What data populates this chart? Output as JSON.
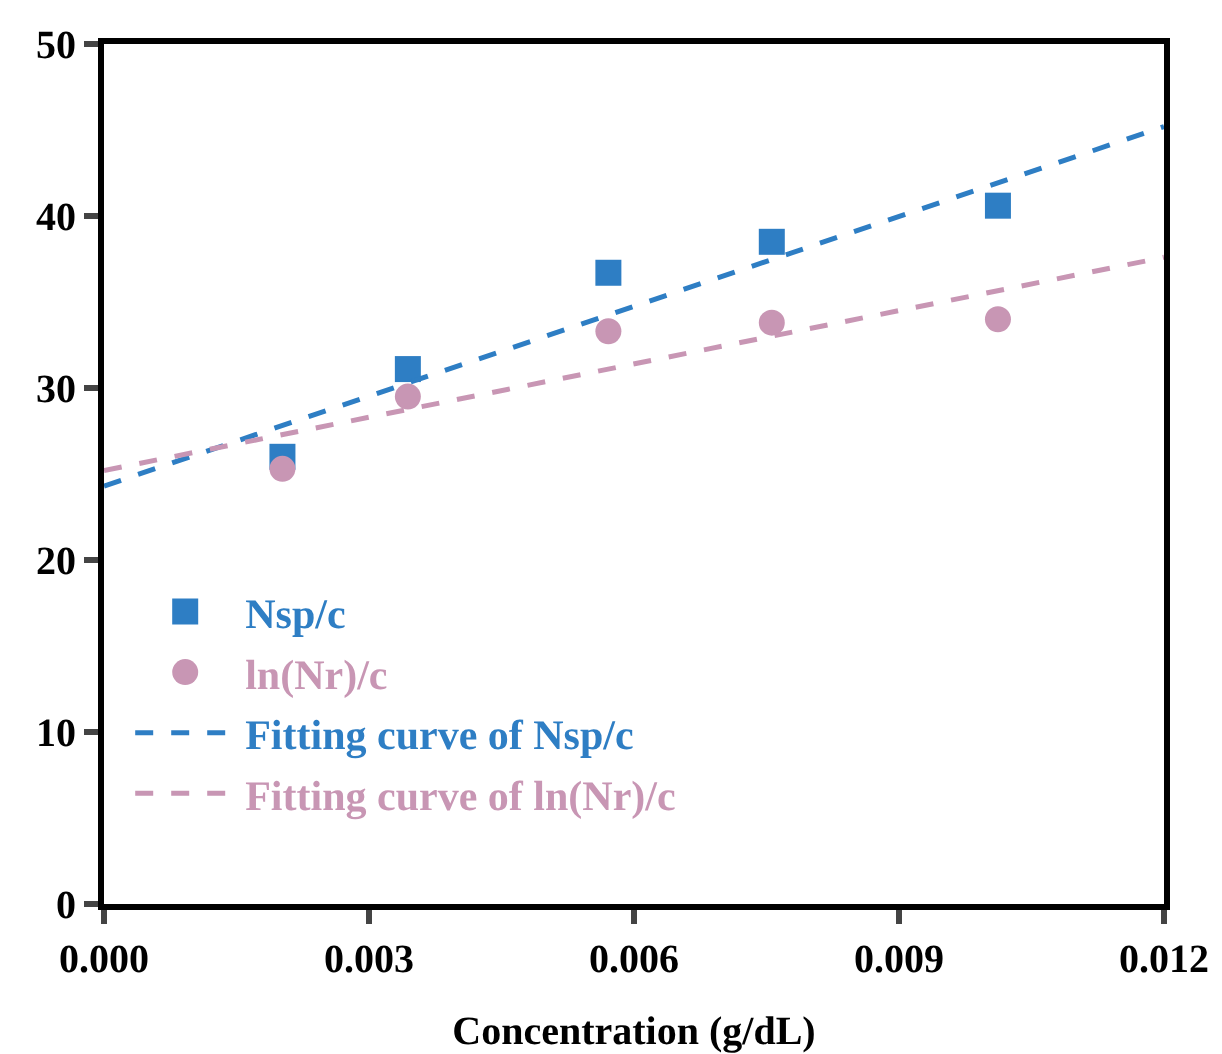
{
  "chart_data": {
    "type": "scatter",
    "xlabel": "Concentration (g/dL)",
    "xlim": [
      0,
      0.012
    ],
    "xticks": [
      {
        "value": 0,
        "label": "0.000"
      },
      {
        "value": 0.003,
        "label": "0.003"
      },
      {
        "value": 0.006,
        "label": "0.006"
      },
      {
        "value": 0.009,
        "label": "0.009"
      },
      {
        "value": 0.012,
        "label": "0.012"
      }
    ],
    "ylim": [
      0,
      50
    ],
    "yticks": [
      0,
      10,
      20,
      30,
      40,
      50
    ],
    "grid": false,
    "legend": "bottom left",
    "series": [
      {
        "name": "Nsp/c",
        "marker": "square",
        "color": "#2e7ec4",
        "x": [
          0.00202,
          0.00344,
          0.00571,
          0.00756,
          0.01012
        ],
        "values": [
          26.0,
          31.1,
          36.7,
          38.5,
          40.6
        ]
      },
      {
        "name": "ln(Nr)/c",
        "marker": "circle",
        "color": "#c896b4",
        "x": [
          0.00202,
          0.00344,
          0.00571,
          0.00756,
          0.01012
        ],
        "values": [
          25.3,
          29.5,
          33.3,
          33.8,
          34.0
        ]
      },
      {
        "name": "Fitting curve of Nsp/c",
        "type": "line",
        "line_style": "dashed",
        "color": "#2e7ec4",
        "x": [
          0,
          0.012
        ],
        "values": [
          24.3,
          45.2
        ]
      },
      {
        "name": "Fitting curve of ln(Nr)/c",
        "type": "line",
        "line_style": "dashed",
        "color": "#c896b4",
        "x": [
          0,
          0.012
        ],
        "values": [
          25.2,
          37.6
        ]
      }
    ]
  }
}
